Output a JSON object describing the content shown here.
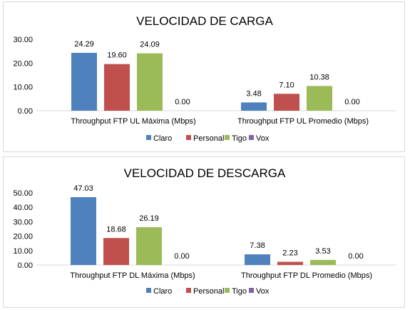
{
  "chart_data": [
    {
      "type": "bar",
      "title": "VELOCIDAD DE CARGA",
      "categories": [
        "Throughput FTP UL Máxima (Mbps)",
        "Throughput FTP UL Promedio (Mbps)"
      ],
      "series": [
        {
          "name": "Claro",
          "color": "#4f81bd",
          "values": [
            24.29,
            3.48
          ],
          "labels": [
            "24.29",
            "3.48"
          ]
        },
        {
          "name": "Personal",
          "color": "#c0504d",
          "values": [
            19.6,
            7.1
          ],
          "labels": [
            "19.60",
            "7.10"
          ]
        },
        {
          "name": "Tigo",
          "color": "#9bbb59",
          "values": [
            24.09,
            10.38
          ],
          "labels": [
            "24.09",
            "10.38"
          ]
        },
        {
          "name": "Vox",
          "color": "#8064a2",
          "values": [
            0.0,
            0.0
          ],
          "labels": [
            "0.00",
            "0.00"
          ]
        }
      ],
      "ylim": [
        0,
        30
      ],
      "yticks": [
        "0.00",
        "10.00",
        "20.00",
        "30.00"
      ],
      "grid": false,
      "legend": "bottom"
    },
    {
      "type": "bar",
      "title": "VELOCIDAD DE DESCARGA",
      "categories": [
        "Throughput FTP DL Máxima (Mbps)",
        "Throughput FTP DL Promedio (Mbps)"
      ],
      "series": [
        {
          "name": "Claro",
          "color": "#4f81bd",
          "values": [
            47.03,
            7.38
          ],
          "labels": [
            "47.03",
            "7.38"
          ]
        },
        {
          "name": "Personal",
          "color": "#c0504d",
          "values": [
            18.68,
            2.23
          ],
          "labels": [
            "18.68",
            "2.23"
          ]
        },
        {
          "name": "Tigo",
          "color": "#9bbb59",
          "values": [
            26.19,
            3.53
          ],
          "labels": [
            "26.19",
            "3.53"
          ]
        },
        {
          "name": "Vox",
          "color": "#8064a2",
          "values": [
            0.0,
            0.0
          ],
          "labels": [
            "0.00",
            "0.00"
          ]
        }
      ],
      "ylim": [
        0,
        50
      ],
      "yticks": [
        "0.00",
        "10.00",
        "20.00",
        "30.00",
        "40.00",
        "50.00"
      ],
      "grid": false,
      "legend": "bottom"
    }
  ]
}
